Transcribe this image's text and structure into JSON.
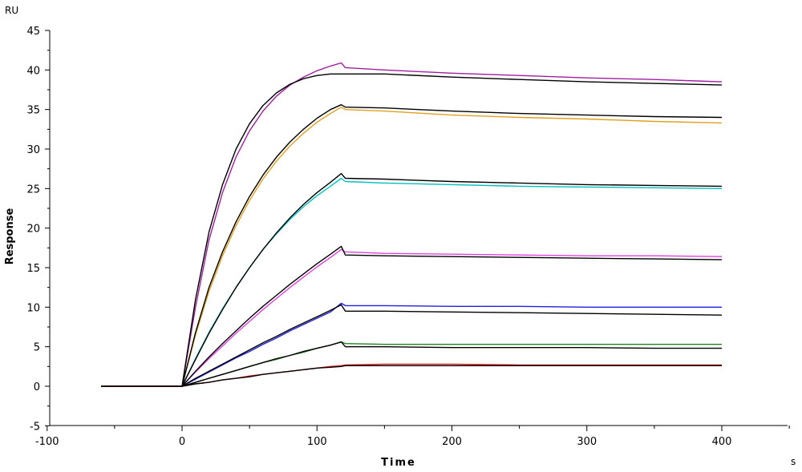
{
  "chart_data": {
    "type": "line",
    "xlabel": "Time",
    "ylabel": "Response",
    "x_unit": "s",
    "y_unit": "RU",
    "xlim": [
      -100,
      450
    ],
    "ylim": [
      -5,
      45
    ],
    "xticks": [
      "-100",
      "0",
      "100",
      "200",
      "300",
      "400"
    ],
    "yticks": [
      "-5",
      "0",
      "5",
      "10",
      "15",
      "20",
      "25",
      "30",
      "35",
      "40",
      "45"
    ],
    "grid": false,
    "legend": "none",
    "series": [
      {
        "color": "#a020a0",
        "values": [
          [
            -60,
            0
          ],
          [
            0,
            0
          ],
          [
            10,
            10
          ],
          [
            20,
            18.5
          ],
          [
            30,
            24.5
          ],
          [
            40,
            29
          ],
          [
            50,
            32.3
          ],
          [
            60,
            34.8
          ],
          [
            70,
            36.7
          ],
          [
            80,
            38.1
          ],
          [
            90,
            39.1
          ],
          [
            100,
            39.9
          ],
          [
            110,
            40.5
          ],
          [
            118,
            40.9
          ],
          [
            121,
            40.3
          ],
          [
            150,
            40.0
          ],
          [
            200,
            39.6
          ],
          [
            250,
            39.3
          ],
          [
            300,
            39.0
          ],
          [
            350,
            38.8
          ],
          [
            400,
            38.5
          ]
        ]
      },
      {
        "color": "#000000",
        "values": [
          [
            -60,
            0
          ],
          [
            0,
            0
          ],
          [
            10,
            11
          ],
          [
            20,
            19.5
          ],
          [
            30,
            25.5
          ],
          [
            40,
            30
          ],
          [
            50,
            33.2
          ],
          [
            60,
            35.5
          ],
          [
            70,
            37.1
          ],
          [
            80,
            38.2
          ],
          [
            90,
            38.9
          ],
          [
            100,
            39.3
          ],
          [
            110,
            39.5
          ],
          [
            120,
            39.5
          ],
          [
            150,
            39.5
          ],
          [
            200,
            39.1
          ],
          [
            250,
            38.8
          ],
          [
            300,
            38.5
          ],
          [
            350,
            38.3
          ],
          [
            400,
            38.1
          ]
        ]
      },
      {
        "color": "#e0a020",
        "values": [
          [
            -60,
            0
          ],
          [
            0,
            0
          ],
          [
            10,
            6.5
          ],
          [
            20,
            12
          ],
          [
            30,
            16.5
          ],
          [
            40,
            20.3
          ],
          [
            50,
            23.5
          ],
          [
            60,
            26.2
          ],
          [
            70,
            28.5
          ],
          [
            80,
            30.4
          ],
          [
            90,
            32
          ],
          [
            100,
            33.4
          ],
          [
            110,
            34.5
          ],
          [
            118,
            35.3
          ],
          [
            121,
            35.0
          ],
          [
            150,
            34.8
          ],
          [
            200,
            34.3
          ],
          [
            250,
            34.0
          ],
          [
            300,
            33.8
          ],
          [
            350,
            33.5
          ],
          [
            400,
            33.3
          ]
        ]
      },
      {
        "color": "#000000",
        "values": [
          [
            -60,
            0
          ],
          [
            0,
            0
          ],
          [
            10,
            6.8
          ],
          [
            20,
            12.5
          ],
          [
            30,
            17
          ],
          [
            40,
            20.8
          ],
          [
            50,
            24
          ],
          [
            60,
            26.7
          ],
          [
            70,
            29
          ],
          [
            80,
            30.9
          ],
          [
            90,
            32.5
          ],
          [
            100,
            33.9
          ],
          [
            110,
            35
          ],
          [
            118,
            35.6
          ],
          [
            121,
            35.3
          ],
          [
            150,
            35.2
          ],
          [
            200,
            34.8
          ],
          [
            250,
            34.5
          ],
          [
            300,
            34.3
          ],
          [
            350,
            34.1
          ],
          [
            400,
            34.0
          ]
        ]
      },
      {
        "color": "#00c0c0",
        "values": [
          [
            -60,
            0
          ],
          [
            0,
            0
          ],
          [
            10,
            3.5
          ],
          [
            20,
            6.8
          ],
          [
            30,
            9.8
          ],
          [
            40,
            12.5
          ],
          [
            50,
            15
          ],
          [
            60,
            17.3
          ],
          [
            70,
            19.3
          ],
          [
            80,
            21.1
          ],
          [
            90,
            22.7
          ],
          [
            100,
            24.1
          ],
          [
            110,
            25.3
          ],
          [
            118,
            26.3
          ],
          [
            121,
            25.9
          ],
          [
            150,
            25.7
          ],
          [
            200,
            25.5
          ],
          [
            250,
            25.3
          ],
          [
            300,
            25.2
          ],
          [
            350,
            25.1
          ],
          [
            400,
            25.0
          ]
        ]
      },
      {
        "color": "#000000",
        "values": [
          [
            -60,
            0
          ],
          [
            0,
            0
          ],
          [
            10,
            3.4
          ],
          [
            20,
            6.7
          ],
          [
            30,
            9.7
          ],
          [
            40,
            12.5
          ],
          [
            50,
            15
          ],
          [
            60,
            17.3
          ],
          [
            70,
            19.4
          ],
          [
            80,
            21.3
          ],
          [
            90,
            23
          ],
          [
            100,
            24.5
          ],
          [
            110,
            25.8
          ],
          [
            118,
            26.9
          ],
          [
            121,
            26.3
          ],
          [
            150,
            26.2
          ],
          [
            200,
            25.9
          ],
          [
            250,
            25.7
          ],
          [
            300,
            25.5
          ],
          [
            350,
            25.4
          ],
          [
            400,
            25.3
          ]
        ]
      },
      {
        "color": "#e040e0",
        "values": [
          [
            -60,
            0
          ],
          [
            0,
            0
          ],
          [
            10,
            1.8
          ],
          [
            20,
            3.5
          ],
          [
            30,
            5.1
          ],
          [
            40,
            6.7
          ],
          [
            50,
            8.2
          ],
          [
            60,
            9.7
          ],
          [
            70,
            11.1
          ],
          [
            80,
            12.5
          ],
          [
            90,
            13.8
          ],
          [
            100,
            15.1
          ],
          [
            110,
            16.3
          ],
          [
            118,
            17.3
          ],
          [
            121,
            17.0
          ],
          [
            150,
            16.8
          ],
          [
            200,
            16.7
          ],
          [
            250,
            16.6
          ],
          [
            300,
            16.5
          ],
          [
            350,
            16.5
          ],
          [
            400,
            16.4
          ]
        ]
      },
      {
        "color": "#000000",
        "values": [
          [
            -60,
            0
          ],
          [
            0,
            0
          ],
          [
            10,
            1.9
          ],
          [
            20,
            3.7
          ],
          [
            30,
            5.4
          ],
          [
            40,
            7.0
          ],
          [
            50,
            8.6
          ],
          [
            60,
            10.1
          ],
          [
            70,
            11.5
          ],
          [
            80,
            12.9
          ],
          [
            90,
            14.2
          ],
          [
            100,
            15.5
          ],
          [
            110,
            16.7
          ],
          [
            118,
            17.7
          ],
          [
            121,
            16.6
          ],
          [
            150,
            16.5
          ],
          [
            200,
            16.4
          ],
          [
            250,
            16.3
          ],
          [
            300,
            16.2
          ],
          [
            350,
            16.1
          ],
          [
            400,
            16.0
          ]
        ]
      },
      {
        "color": "#2020e0",
        "values": [
          [
            -60,
            0
          ],
          [
            0,
            0
          ],
          [
            10,
            0.9
          ],
          [
            20,
            1.8
          ],
          [
            30,
            2.7
          ],
          [
            40,
            3.6
          ],
          [
            50,
            4.4
          ],
          [
            60,
            5.3
          ],
          [
            70,
            6.1
          ],
          [
            80,
            7.0
          ],
          [
            90,
            7.8
          ],
          [
            100,
            8.6
          ],
          [
            110,
            9.4
          ],
          [
            118,
            10.5
          ],
          [
            121,
            10.2
          ],
          [
            150,
            10.2
          ],
          [
            200,
            10.1
          ],
          [
            250,
            10.1
          ],
          [
            300,
            10.0
          ],
          [
            350,
            10.0
          ],
          [
            400,
            10.0
          ]
        ]
      },
      {
        "color": "#000000",
        "values": [
          [
            -60,
            0
          ],
          [
            0,
            0
          ],
          [
            10,
            1.0
          ],
          [
            20,
            1.9
          ],
          [
            30,
            2.8
          ],
          [
            40,
            3.7
          ],
          [
            50,
            4.6
          ],
          [
            60,
            5.5
          ],
          [
            70,
            6.3
          ],
          [
            80,
            7.2
          ],
          [
            90,
            8.0
          ],
          [
            100,
            8.8
          ],
          [
            110,
            9.6
          ],
          [
            118,
            10.3
          ],
          [
            121,
            9.5
          ],
          [
            150,
            9.5
          ],
          [
            200,
            9.4
          ],
          [
            250,
            9.3
          ],
          [
            300,
            9.2
          ],
          [
            350,
            9.1
          ],
          [
            400,
            9.0
          ]
        ]
      },
      {
        "color": "#208020",
        "values": [
          [
            -60,
            0
          ],
          [
            0,
            0
          ],
          [
            10,
            0.5
          ],
          [
            20,
            1.0
          ],
          [
            30,
            1.5
          ],
          [
            40,
            2.0
          ],
          [
            50,
            2.5
          ],
          [
            60,
            3.0
          ],
          [
            70,
            3.4
          ],
          [
            80,
            3.9
          ],
          [
            90,
            4.3
          ],
          [
            100,
            4.8
          ],
          [
            110,
            5.2
          ],
          [
            118,
            5.6
          ],
          [
            121,
            5.4
          ],
          [
            150,
            5.3
          ],
          [
            200,
            5.3
          ],
          [
            250,
            5.3
          ],
          [
            300,
            5.3
          ],
          [
            350,
            5.3
          ],
          [
            400,
            5.3
          ]
        ]
      },
      {
        "color": "#000000",
        "values": [
          [
            -60,
            0
          ],
          [
            0,
            0
          ],
          [
            10,
            0.5
          ],
          [
            20,
            1.0
          ],
          [
            30,
            1.5
          ],
          [
            40,
            2.0
          ],
          [
            50,
            2.5
          ],
          [
            60,
            3.0
          ],
          [
            70,
            3.5
          ],
          [
            80,
            3.9
          ],
          [
            90,
            4.4
          ],
          [
            100,
            4.8
          ],
          [
            110,
            5.2
          ],
          [
            118,
            5.6
          ],
          [
            121,
            5.0
          ],
          [
            150,
            5.0
          ],
          [
            200,
            4.9
          ],
          [
            250,
            4.9
          ],
          [
            300,
            4.9
          ],
          [
            350,
            4.8
          ],
          [
            400,
            4.8
          ]
        ]
      },
      {
        "color": "#e02020",
        "values": [
          [
            -60,
            0
          ],
          [
            0,
            0
          ],
          [
            10,
            0.3
          ],
          [
            20,
            0.5
          ],
          [
            30,
            0.8
          ],
          [
            40,
            1.0
          ],
          [
            50,
            1.3
          ],
          [
            60,
            1.5
          ],
          [
            70,
            1.7
          ],
          [
            80,
            1.9
          ],
          [
            90,
            2.1
          ],
          [
            100,
            2.3
          ],
          [
            110,
            2.5
          ],
          [
            118,
            2.6
          ],
          [
            121,
            2.7
          ],
          [
            150,
            2.8
          ],
          [
            200,
            2.8
          ],
          [
            250,
            2.7
          ],
          [
            300,
            2.7
          ],
          [
            350,
            2.7
          ],
          [
            400,
            2.7
          ]
        ]
      },
      {
        "color": "#000000",
        "values": [
          [
            -60,
            0
          ],
          [
            0,
            0
          ],
          [
            10,
            0.3
          ],
          [
            20,
            0.5
          ],
          [
            30,
            0.8
          ],
          [
            40,
            1.0
          ],
          [
            50,
            1.2
          ],
          [
            60,
            1.5
          ],
          [
            70,
            1.7
          ],
          [
            80,
            1.9
          ],
          [
            90,
            2.1
          ],
          [
            100,
            2.3
          ],
          [
            110,
            2.4
          ],
          [
            118,
            2.5
          ],
          [
            121,
            2.6
          ],
          [
            150,
            2.6
          ],
          [
            200,
            2.6
          ],
          [
            250,
            2.6
          ],
          [
            300,
            2.6
          ],
          [
            350,
            2.6
          ],
          [
            400,
            2.6
          ]
        ]
      }
    ]
  }
}
